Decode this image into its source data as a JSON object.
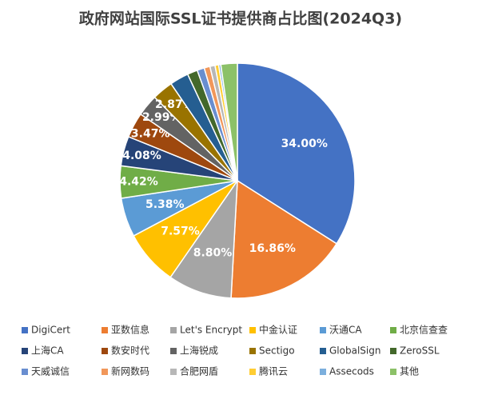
{
  "chart_data": {
    "type": "pie",
    "title": "政府网站国际SSL证书提供商占比图(2024Q3)",
    "categories": [
      "DigiCert",
      "亚数信息",
      "Let's Encrypt",
      "中金认证",
      "沃通CA",
      "北京信查查",
      "上海CA",
      "数安时代",
      "上海锐成",
      "Sectigo",
      "GlobalSign",
      "ZeroSSL",
      "天威诚信",
      "新网数码",
      "合肥网盾",
      "腾讯云",
      "Assecods",
      "其他"
    ],
    "values": [
      34.0,
      16.86,
      8.8,
      7.57,
      5.38,
      4.42,
      4.08,
      3.47,
      2.99,
      2.87,
      2.6,
      1.4,
      1.0,
      0.8,
      0.7,
      0.5,
      0.3,
      2.26
    ],
    "value_labels": [
      "34.00%",
      "16.86%",
      "8.80%",
      "7.57%",
      "5.38%",
      "4.42%",
      "4.08%",
      "3.47%",
      "2.99%",
      "2.87%",
      null,
      null,
      null,
      null,
      null,
      null,
      null,
      null
    ],
    "colors": [
      "#4472c4",
      "#ed7d31",
      "#a5a5a5",
      "#ffc000",
      "#5b9bd5",
      "#70ad47",
      "#264478",
      "#9e480e",
      "#636363",
      "#997300",
      "#255e91",
      "#43682b",
      "#698ed0",
      "#f1975a",
      "#b7b7b7",
      "#ffcd33",
      "#7cafdd",
      "#8cc168"
    ],
    "legend": "bottom"
  }
}
